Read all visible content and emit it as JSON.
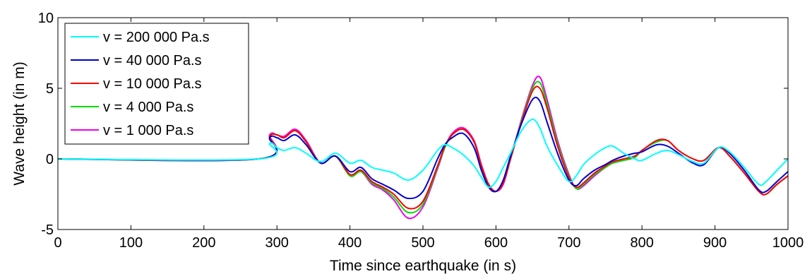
{
  "chart_data": {
    "type": "line",
    "xlabel": "Time since earthquake (in s)",
    "ylabel": "Wave height (in m)",
    "xlim": [
      0,
      1000
    ],
    "ylim": [
      -5,
      10
    ],
    "xticks": [
      "0",
      "100",
      "200",
      "300",
      "400",
      "500",
      "600",
      "700",
      "800",
      "900",
      "1000"
    ],
    "yticks": [
      "-5",
      "0",
      "5",
      "10"
    ],
    "grid": false,
    "legend_position": "top-left",
    "x": [
      0,
      275,
      290,
      300,
      310,
      325,
      340,
      360,
      380,
      400,
      415,
      430,
      445,
      460,
      480,
      500,
      520,
      530,
      540,
      555,
      570,
      580,
      590,
      600,
      610,
      620,
      635,
      650,
      660,
      670,
      685,
      700,
      710,
      720,
      735,
      750,
      760,
      775,
      790,
      800,
      820,
      835,
      850,
      870,
      885,
      905,
      920,
      940,
      960,
      970,
      985,
      1000
    ],
    "series": [
      {
        "name": "v = 200 000 Pa.s",
        "color": "#00ffff",
        "values": [
          0,
          0,
          1.1,
          0.8,
          0.6,
          0.8,
          0.4,
          -0.2,
          0.4,
          -0.3,
          -0.1,
          -0.6,
          -0.8,
          -1.0,
          -1.5,
          -0.8,
          0.6,
          1.0,
          0.8,
          0.3,
          -0.5,
          -1.3,
          -2.0,
          -1.6,
          -0.6,
          0.4,
          2.0,
          2.8,
          2.2,
          0.9,
          -0.5,
          -1.6,
          -1.2,
          -0.4,
          0.3,
          0.8,
          0.9,
          0.4,
          0.0,
          -0.1,
          0.4,
          0.6,
          0.3,
          -0.2,
          -0.3,
          0.8,
          0.5,
          -0.6,
          -1.8,
          -1.6,
          -0.8,
          0.0
        ]
      },
      {
        "name": "v = 40 000 Pa.s",
        "color": "#0000cc",
        "values": [
          0,
          0,
          1.5,
          1.5,
          1.3,
          1.7,
          1.0,
          -0.3,
          0.2,
          -0.9,
          -0.6,
          -1.4,
          -1.8,
          -2.2,
          -2.8,
          -2.3,
          0.0,
          1.0,
          1.5,
          1.8,
          0.8,
          -0.8,
          -2.0,
          -2.3,
          -1.5,
          0.2,
          2.5,
          4.2,
          4.1,
          2.6,
          0.3,
          -1.5,
          -1.9,
          -1.4,
          -0.8,
          -0.4,
          -0.1,
          0.2,
          0.4,
          0.5,
          1.0,
          0.9,
          0.4,
          -0.3,
          -0.4,
          0.8,
          0.4,
          -0.8,
          -2.2,
          -2.3,
          -1.6,
          -0.9
        ]
      },
      {
        "name": "v = 10 000 Pa.s",
        "color": "#ff0000",
        "values": [
          0,
          0,
          1.6,
          1.7,
          1.5,
          2.0,
          1.2,
          -0.3,
          0.2,
          -1.1,
          -0.8,
          -1.6,
          -2.0,
          -2.5,
          -3.5,
          -3.0,
          -0.5,
          0.9,
          1.7,
          2.1,
          1.2,
          -0.5,
          -1.8,
          -2.3,
          -1.7,
          0.0,
          2.6,
          4.8,
          5.0,
          3.6,
          0.8,
          -1.3,
          -2.0,
          -1.7,
          -1.0,
          -0.5,
          -0.2,
          0.0,
          0.2,
          0.6,
          1.3,
          1.3,
          0.6,
          0.0,
          -0.1,
          0.8,
          0.2,
          -1.0,
          -2.3,
          -2.5,
          -1.8,
          -1.2
        ]
      },
      {
        "name": "v = 4 000 Pa.s",
        "color": "#00dd00",
        "values": [
          0,
          0,
          1.6,
          1.7,
          1.5,
          2.0,
          1.2,
          -0.3,
          0.2,
          -1.2,
          -0.9,
          -1.7,
          -2.1,
          -2.7,
          -3.8,
          -3.2,
          -0.6,
          0.8,
          1.7,
          2.1,
          1.2,
          -0.5,
          -1.8,
          -2.3,
          -1.7,
          0.0,
          2.7,
          5.0,
          5.4,
          3.9,
          1.0,
          -1.2,
          -2.1,
          -1.8,
          -1.1,
          -0.6,
          -0.3,
          -0.1,
          0.1,
          0.6,
          1.2,
          1.3,
          0.6,
          0.0,
          -0.1,
          0.8,
          0.2,
          -1.0,
          -2.3,
          -2.5,
          -1.8,
          -1.2
        ]
      },
      {
        "name": "v = 1 000 Pa.s",
        "color": "#ee00ee",
        "values": [
          0,
          0,
          1.7,
          1.7,
          1.6,
          2.1,
          1.3,
          -0.3,
          0.2,
          -1.2,
          -0.9,
          -1.8,
          -2.2,
          -2.9,
          -4.2,
          -3.4,
          -0.7,
          0.8,
          1.8,
          2.2,
          1.3,
          -0.4,
          -1.8,
          -2.3,
          -1.8,
          0.0,
          2.8,
          5.2,
          5.8,
          4.2,
          1.2,
          -1.1,
          -2.1,
          -1.9,
          -1.2,
          -0.6,
          -0.3,
          -0.1,
          0.1,
          0.6,
          1.2,
          1.3,
          0.6,
          0.0,
          -0.1,
          0.8,
          0.2,
          -1.0,
          -2.3,
          -2.5,
          -1.8,
          -1.2
        ]
      }
    ]
  }
}
